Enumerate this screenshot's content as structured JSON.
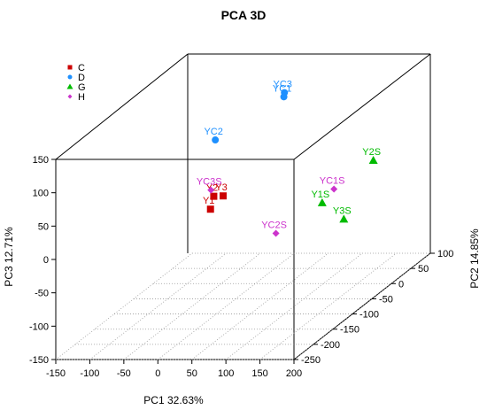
{
  "chart_data": {
    "type": "scatter",
    "title": "PCA 3D",
    "xlabel": "PC1 32.63%",
    "ylabel": "PC3 12.71%",
    "zlabel": "PC2 14.85%",
    "xlim": [
      -150,
      200
    ],
    "ylim": [
      -150,
      150
    ],
    "zlim": [
      -250,
      100
    ],
    "x_ticks": [
      -150,
      -100,
      -50,
      0,
      50,
      100,
      150,
      200
    ],
    "y_ticks": [
      -150,
      -100,
      -50,
      0,
      50,
      100,
      150
    ],
    "z_ticks": [
      -250,
      -200,
      -150,
      -100,
      -50,
      0,
      50,
      100
    ],
    "legend_position": "top-left",
    "series": [
      {
        "name": "C",
        "color": "#cc0000",
        "marker": "square",
        "points": [
          {
            "label": "Y1",
            "x": -20,
            "y": -2,
            "z": -80
          },
          {
            "label": "Y2",
            "x": 2,
            "y": 31,
            "z": -110
          },
          {
            "label": "Y3",
            "x": 10,
            "y": 27,
            "z": -100
          }
        ]
      },
      {
        "name": "D",
        "color": "#1e90ff",
        "marker": "circle",
        "points": [
          {
            "label": "YC3",
            "x": 40,
            "y": 134,
            "z": 5
          },
          {
            "label": "YC1",
            "x": 42,
            "y": 130,
            "z": 0
          },
          {
            "label": "YC2",
            "x": 10,
            "y": 120,
            "z": -120
          }
        ]
      },
      {
        "name": "G",
        "color": "#00bb00",
        "marker": "triangle",
        "points": [
          {
            "label": "Y2S",
            "x": 205,
            "y": 60,
            "z": -55
          },
          {
            "label": "Y3S",
            "x": 216,
            "y": 15,
            "z": -150
          },
          {
            "label": "Y1S",
            "x": 167,
            "y": 26,
            "z": -120
          }
        ]
      },
      {
        "name": "H",
        "color": "#cc33cc",
        "marker": "diamond",
        "points": [
          {
            "label": "YC1S",
            "x": 170,
            "y": 35,
            "z": -95
          },
          {
            "label": "YC2S",
            "x": 162,
            "y": 30,
            "z": -230
          },
          {
            "label": "YC3S",
            "x": 15,
            "y": 54,
            "z": -140
          }
        ]
      }
    ]
  }
}
